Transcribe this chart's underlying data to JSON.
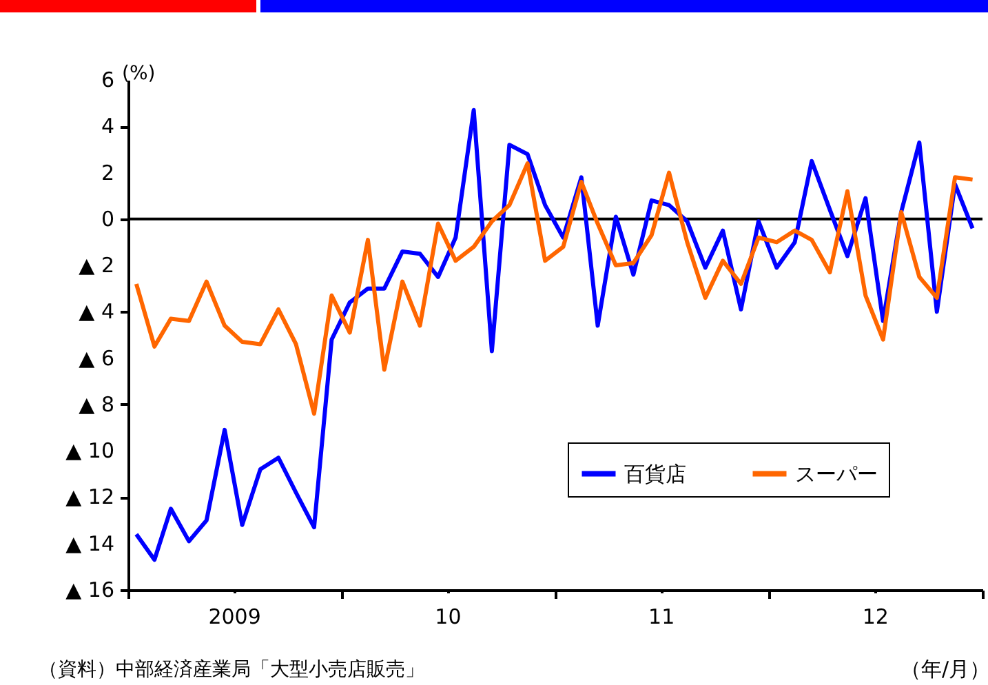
{
  "chart_data": {
    "type": "line",
    "ylabel": "(%)",
    "xlabel": "（年/月）",
    "x": [
      "2009-01-15",
      "2009-02-15",
      "2009-03-15",
      "2009-04-15",
      "2009-05-15",
      "2009-06-15",
      "2009-07-15",
      "2009-08-15",
      "2009-09-15",
      "2009-10-15",
      "2009-11-15",
      "2009-12-15",
      "2010-01-15",
      "2010-02-15",
      "2010-03-15",
      "2010-04-15",
      "2010-05-15",
      "2010-06-15",
      "2010-07-15",
      "2010-08-15",
      "2010-09-15",
      "2010-10-15",
      "2010-11-15",
      "2010-12-15",
      "2011-01-15",
      "2011-02-15",
      "2011-03-15",
      "2011-04-15",
      "2011-05-15",
      "2011-06-15",
      "2011-07-15",
      "2011-08-15",
      "2011-09-15",
      "2011-10-15",
      "2011-11-15",
      "2011-12-15",
      "2012-01-15",
      "2012-02-15",
      "2012-03-15",
      "2012-04-15",
      "2012-05-15",
      "2012-06-15",
      "2012-07-15",
      "2012-08-15",
      "2012-09-15",
      "2012-10-15",
      "2012-11-15",
      "2012-12-15"
    ],
    "series": [
      {
        "name": "百貨店",
        "color": "#0000ff",
        "values": [
          -13.6,
          -14.7,
          -12.5,
          -13.9,
          -13.0,
          -9.1,
          -13.2,
          -10.8,
          -10.3,
          -11.8,
          -13.3,
          -5.2,
          -3.6,
          -3.0,
          -3.0,
          -1.4,
          -1.5,
          -2.5,
          -0.8,
          4.7,
          -5.7,
          3.2,
          2.8,
          0.6,
          -0.8,
          1.8,
          -4.6,
          0.1,
          -2.4,
          0.8,
          0.6,
          -0.1,
          -2.1,
          -0.5,
          -3.9,
          -0.1,
          -2.1,
          -1.0,
          2.5,
          0.4,
          -1.6,
          0.9,
          -4.4,
          0.3,
          3.3,
          -4.0,
          1.5,
          -0.4
        ]
      },
      {
        "name": "スーパー",
        "color": "#ff6600",
        "values": [
          -2.8,
          -5.5,
          -4.3,
          -4.4,
          -2.7,
          -4.6,
          -5.3,
          -5.4,
          -3.9,
          -5.4,
          -8.4,
          -3.3,
          -4.9,
          -0.9,
          -6.5,
          -2.7,
          -4.6,
          -0.2,
          -1.8,
          -1.2,
          -0.1,
          0.6,
          2.4,
          -1.8,
          -1.2,
          1.6,
          -0.2,
          -2.0,
          -1.9,
          -0.7,
          2.0,
          -1.0,
          -3.4,
          -1.8,
          -2.8,
          -0.8,
          -1.0,
          -0.5,
          -0.9,
          -2.3,
          1.2,
          -3.3,
          -5.2,
          0.3,
          -2.5,
          -3.4,
          1.8,
          1.7
        ]
      }
    ],
    "xlim": [
      "2009-01-01",
      "2013-01-01"
    ],
    "xticks": [
      {
        "value": "2009-01-01",
        "label": null
      },
      {
        "value": "2009-07-01",
        "label": "2009"
      },
      {
        "value": "2010-01-01",
        "label": null
      },
      {
        "value": "2010-07-01",
        "label": "10"
      },
      {
        "value": "2011-01-01",
        "label": null
      },
      {
        "value": "2011-07-01",
        "label": "11"
      },
      {
        "value": "2012-01-01",
        "label": null
      },
      {
        "value": "2012-07-01",
        "label": "12"
      },
      {
        "value": "2013-01-01",
        "label": null
      }
    ],
    "ylim": [
      -16,
      6
    ],
    "yticks": [
      6,
      4,
      2,
      0,
      {
        "value": -2,
        "label": "▲ 2"
      },
      {
        "value": -4,
        "label": "▲ 4"
      },
      {
        "value": -6,
        "label": "▲ 6"
      },
      {
        "value": -8,
        "label": "▲ 8"
      },
      {
        "value": -10,
        "label": "▲ 10"
      },
      {
        "value": -12,
        "label": "▲ 12"
      },
      {
        "value": -14,
        "label": "▲ 14"
      },
      {
        "value": -16,
        "label": "▲ 16"
      }
    ],
    "ref_lines": [
      {
        "axis": "y",
        "value": 0,
        "color": "#000000"
      }
    ],
    "grid": false,
    "legend": "bottom right",
    "marker": "none",
    "line_style": "solid",
    "annotations": [
      "（資料）中部経済産業局「大型小売店販売」"
    ]
  }
}
